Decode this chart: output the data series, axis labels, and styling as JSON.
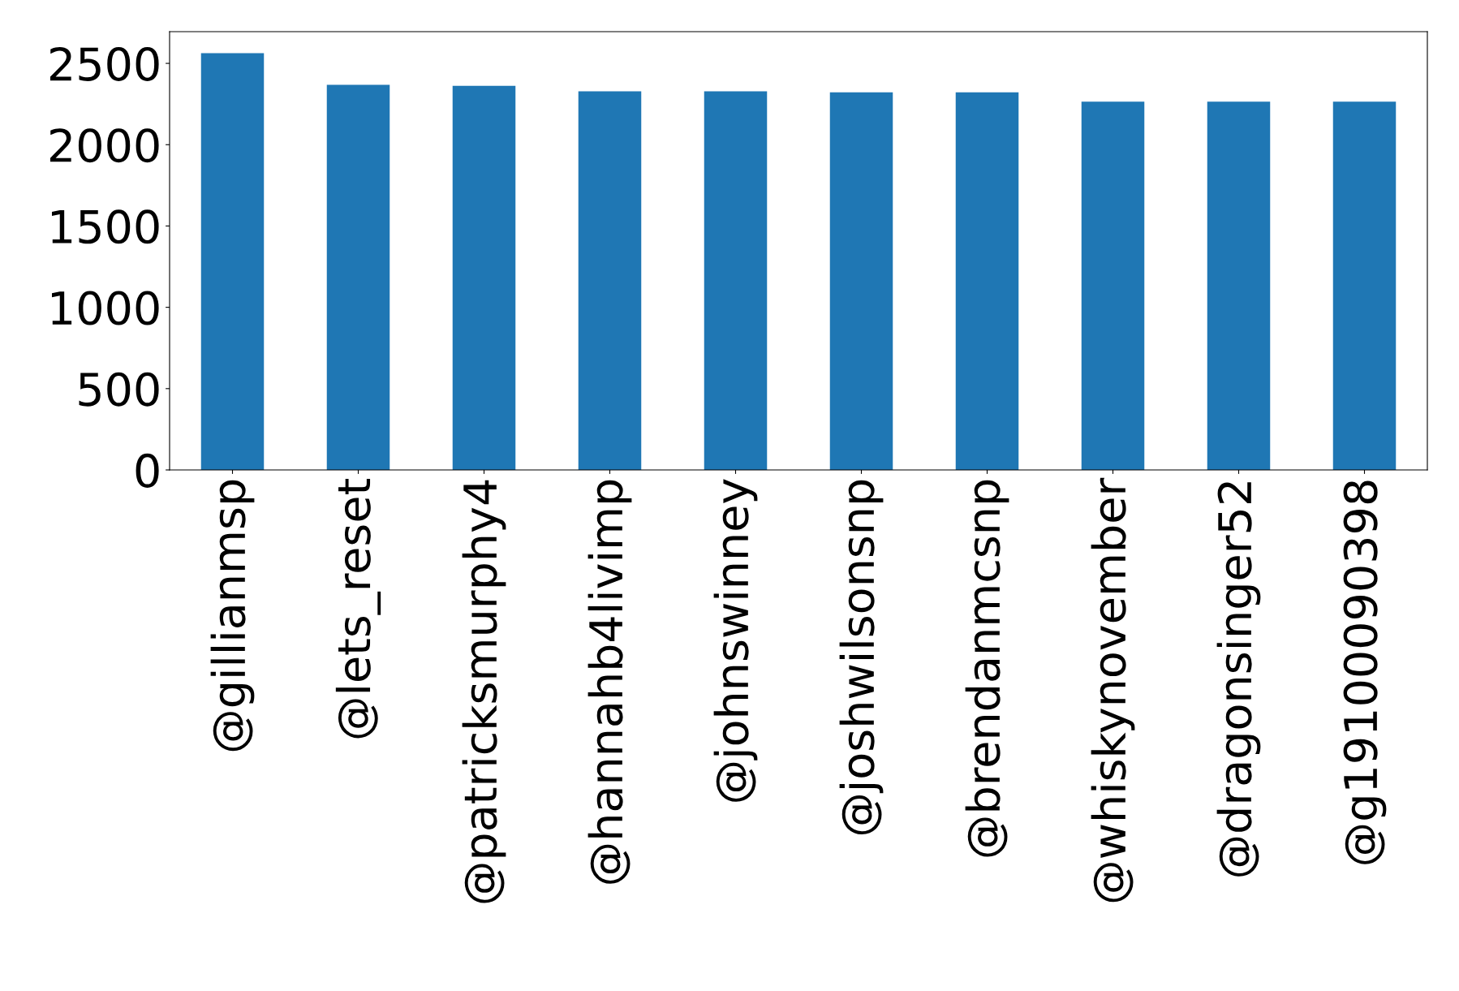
{
  "chart_data": {
    "type": "bar",
    "categories": [
      "@gillianmsp",
      "@lets_reset",
      "@patricksmurphy4",
      "@hannahb4livimp",
      "@johnswinney",
      "@joshwilsonsnp",
      "@brendanmcsnp",
      "@whiskynovember",
      "@dragonsinger52",
      "@g19100090398"
    ],
    "values": [
      2563,
      2368,
      2362,
      2328,
      2328,
      2322,
      2322,
      2265,
      2265,
      2265
    ],
    "color": "#1f77b4",
    "ylim": [
      0,
      2695
    ],
    "yticks": [
      0,
      500,
      1000,
      1500,
      2000,
      2500
    ],
    "grid": false
  }
}
